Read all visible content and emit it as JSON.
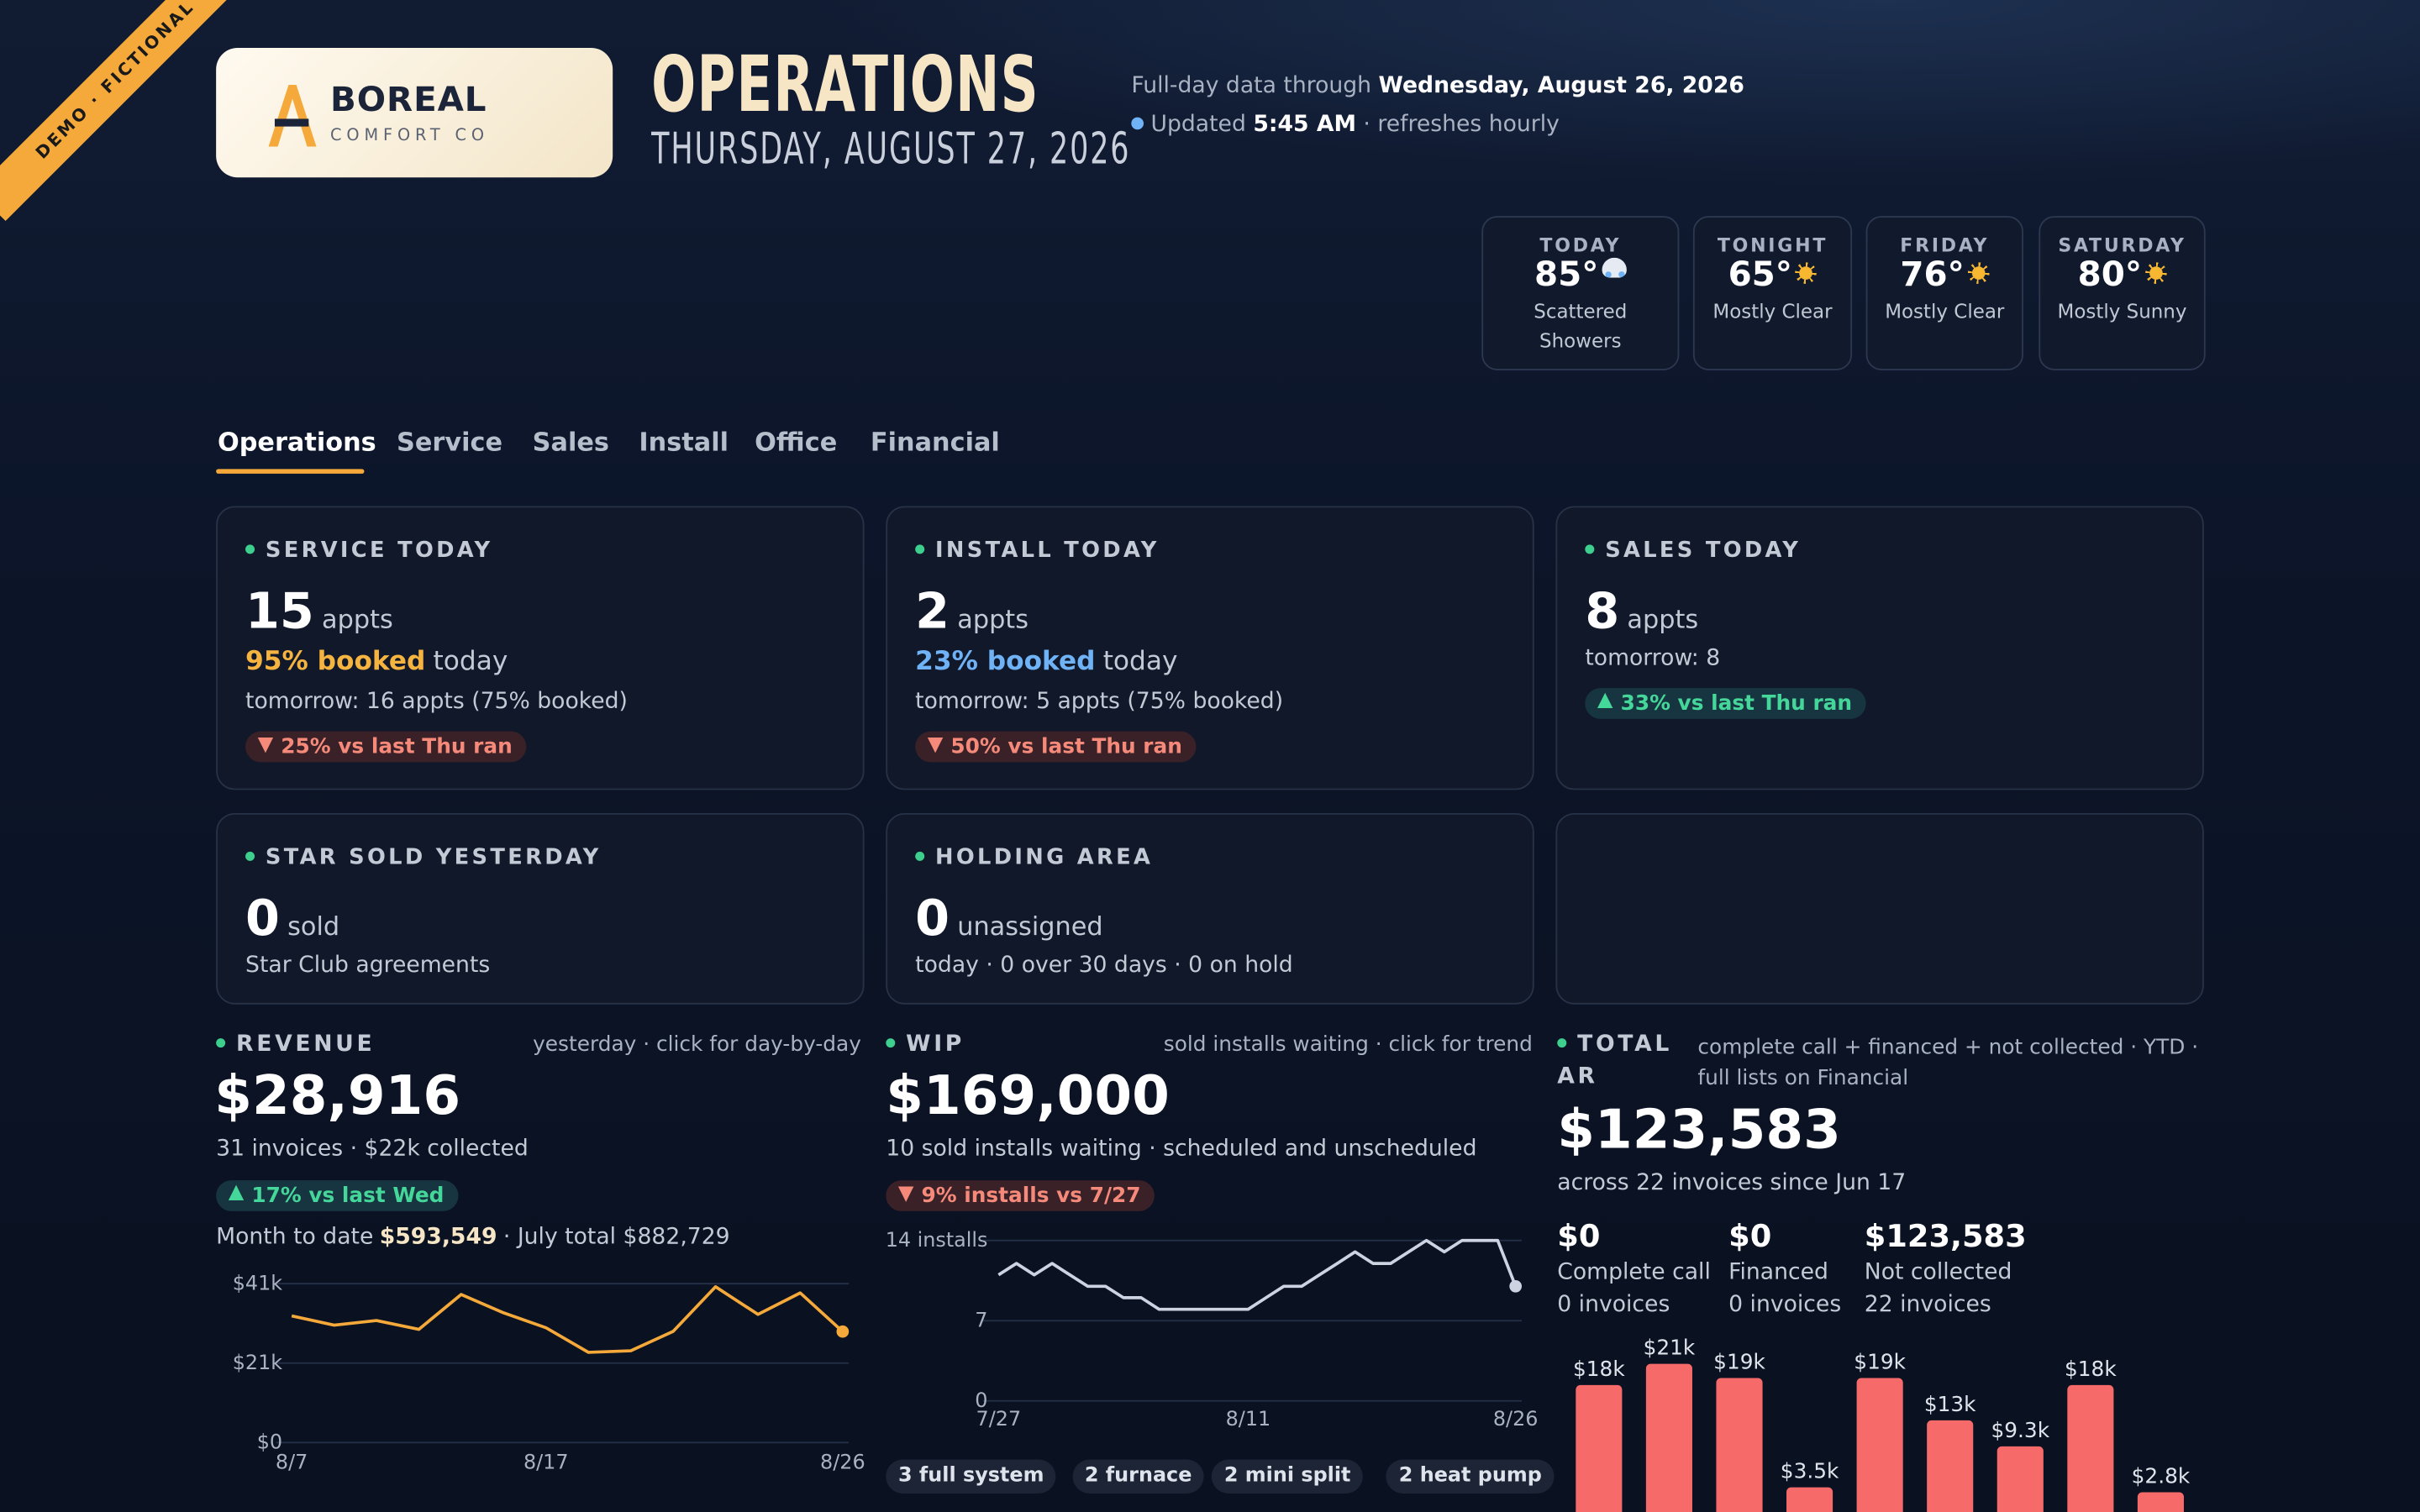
{
  "badge": "DEMO · FICTIONAL",
  "brand": {
    "name": "BOREAL",
    "tagline": "COMFORT CO"
  },
  "header": {
    "title": "OPERATIONS",
    "date": "THURSDAY, AUGUST 27, 2026",
    "data_prefix": "Full-day data through",
    "data_date": "Wednesday, August 26, 2026",
    "updated_prefix": "Updated",
    "updated_time": "5:45 AM",
    "updated_suffix": "· refreshes hourly"
  },
  "weather": [
    {
      "day": "TODAY",
      "temp": "85°",
      "icon": "showers",
      "condition": "Scattered Showers"
    },
    {
      "day": "TONIGHT",
      "temp": "65°",
      "icon": "sun",
      "condition": "Mostly Clear"
    },
    {
      "day": "FRIDAY",
      "temp": "76°",
      "icon": "sun",
      "condition": "Mostly Clear"
    },
    {
      "day": "SATURDAY",
      "temp": "80°",
      "icon": "sun",
      "condition": "Mostly Sunny"
    }
  ],
  "tabs": [
    "Operations",
    "Service",
    "Sales",
    "Install",
    "Office",
    "Financial"
  ],
  "cards": [
    {
      "title": "SERVICE TODAY",
      "value": 15,
      "unit": "appts",
      "highlight": "95% booked",
      "highlight_suffix": "today",
      "highlight_color": "#f5b340",
      "note": "tomorrow: 16 appts (75% booked)",
      "change": "25% vs last Thu ran",
      "direction": "down"
    },
    {
      "title": "INSTALL TODAY",
      "value": 2,
      "unit": "appts",
      "highlight": "23% booked",
      "highlight_suffix": "today",
      "highlight_color": "#6fb2f6",
      "note": "tomorrow: 5 appts (75% booked)",
      "change": "50% vs last Thu ran",
      "direction": "down"
    },
    {
      "title": "SALES TODAY",
      "value": 8,
      "unit": "appts",
      "note": "tomorrow: 8",
      "change": "33% vs last Thu ran",
      "direction": "up"
    },
    {
      "title": "STAR SOLD YESTERDAY",
      "value": 0,
      "unit": "sold",
      "note": "Star Club agreements"
    },
    {
      "title": "HOLDING AREA",
      "value": 0,
      "unit": "unassigned",
      "note": "today · 0 over 30 days · 0 on hold"
    },
    {}
  ],
  "revenue": {
    "title": "REVENUE",
    "hint": "yesterday · click for day-by-day",
    "value": "$28,916",
    "sub": "31 invoices · $22k collected",
    "change": "17% vs last Wed",
    "direction": "up",
    "mtd_prefix": "Month to date",
    "mtd_value": "$593,549",
    "mtd_suffix": "· July total $882,729",
    "chart_data": {
      "type": "line",
      "color": "#f5a93a",
      "categories": [
        "8/7",
        null,
        null,
        null,
        null,
        null,
        "8/17",
        null,
        null,
        null,
        null,
        null,
        null,
        "8/26"
      ],
      "values": [
        33000,
        30600,
        31800,
        29500,
        38600,
        33800,
        29900,
        23500,
        23900,
        29000,
        40600,
        33400,
        39000,
        28916
      ],
      "ylim": [
        0,
        41400
      ],
      "yticks": [
        {
          "value": 0,
          "label": "$0"
        },
        {
          "value": 20700,
          "label": "$21k"
        },
        {
          "value": 41400,
          "label": "$41k"
        }
      ],
      "grid": true
    }
  },
  "wip": {
    "title": "WIP",
    "hint": "sold installs waiting · click for trend",
    "value": "$169,000",
    "sub": "10 sold installs waiting · scheduled and unscheduled",
    "change": "9% installs vs 7/27",
    "direction": "down",
    "chart_data": {
      "type": "line",
      "color": "#cdd3e0",
      "categories": [
        "7/27",
        null,
        null,
        null,
        null,
        null,
        null,
        null,
        null,
        null,
        null,
        null,
        null,
        null,
        "8/11",
        null,
        null,
        null,
        null,
        null,
        null,
        null,
        null,
        null,
        null,
        null,
        null,
        null,
        null,
        "8/26"
      ],
      "values": [
        11,
        12,
        11,
        12,
        11,
        10,
        10,
        9,
        9,
        8,
        8,
        8,
        8,
        8,
        8,
        9,
        10,
        10,
        11,
        12,
        13,
        12,
        12,
        13,
        14,
        13,
        14,
        14,
        14,
        10
      ],
      "ylim": [
        0,
        14
      ],
      "yticks": [
        0,
        7,
        {
          "value": 14,
          "label": "14 installs"
        }
      ],
      "grid": true
    },
    "chips": [
      "3 full system",
      "2 furnace",
      "2 mini split",
      "2 heat pump"
    ]
  },
  "ar": {
    "title": "TOTAL AR",
    "hint": "complete call + financed + not collected · YTD · full lists on Financial",
    "value": "$123,583",
    "sub": "across 22 invoices since Jun 17",
    "stats": [
      {
        "value": "$0",
        "label": "Complete call",
        "count": "0 invoices"
      },
      {
        "value": "$0",
        "label": "Financed",
        "count": "0 invoices"
      },
      {
        "value": "$123,583",
        "label": "Not collected",
        "count": "22 invoices"
      }
    ],
    "chart_data": {
      "type": "bar",
      "color": "#f76a6a",
      "values": [
        18000,
        21000,
        19000,
        3500,
        19000,
        13000,
        9300,
        18000,
        2800
      ],
      "value_labels": [
        "$18k",
        "$21k",
        "$19k",
        "$3.5k",
        "$19k",
        "$13k",
        "$9.3k",
        "$18k",
        "$2.8k"
      ]
    }
  }
}
